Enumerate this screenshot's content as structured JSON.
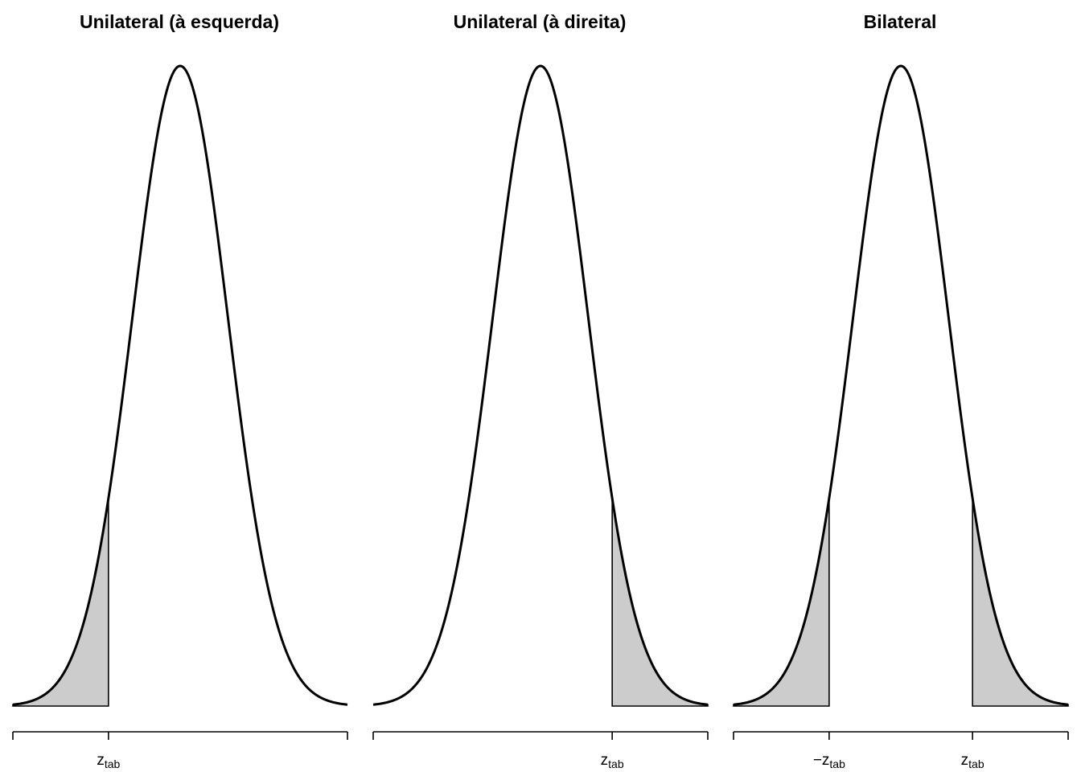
{
  "chart_data": [
    {
      "type": "area",
      "title": "Unilateral (à esquerda)",
      "distribution": "normal",
      "xlim": [
        -3.5,
        3.5
      ],
      "critical_value": -1.5,
      "shaded_regions": [
        [
          -3.5,
          -1.5
        ]
      ],
      "tick_labels": [
        {
          "x": -1.5,
          "base": "z",
          "subscript": "tab",
          "prefix": ""
        }
      ],
      "fill_color": "#cccccc",
      "line_color": "#000000",
      "grid": false
    },
    {
      "type": "area",
      "title": "Unilateral (à direita)",
      "distribution": "normal",
      "xlim": [
        -3.5,
        3.5
      ],
      "critical_value": 1.5,
      "shaded_regions": [
        [
          1.5,
          3.5
        ]
      ],
      "tick_labels": [
        {
          "x": 1.5,
          "base": "z",
          "subscript": "tab",
          "prefix": ""
        }
      ],
      "fill_color": "#cccccc",
      "line_color": "#000000",
      "grid": false
    },
    {
      "type": "area",
      "title": "Bilateral",
      "distribution": "normal",
      "xlim": [
        -3.5,
        3.5
      ],
      "critical_value": 1.5,
      "shaded_regions": [
        [
          -3.5,
          -1.5
        ],
        [
          1.5,
          3.5
        ]
      ],
      "tick_labels": [
        {
          "x": -1.5,
          "base": "z",
          "subscript": "tab",
          "prefix": "−"
        },
        {
          "x": 1.5,
          "base": "z",
          "subscript": "tab",
          "prefix": ""
        }
      ],
      "fill_color": "#cccccc",
      "line_color": "#000000",
      "grid": false
    }
  ]
}
